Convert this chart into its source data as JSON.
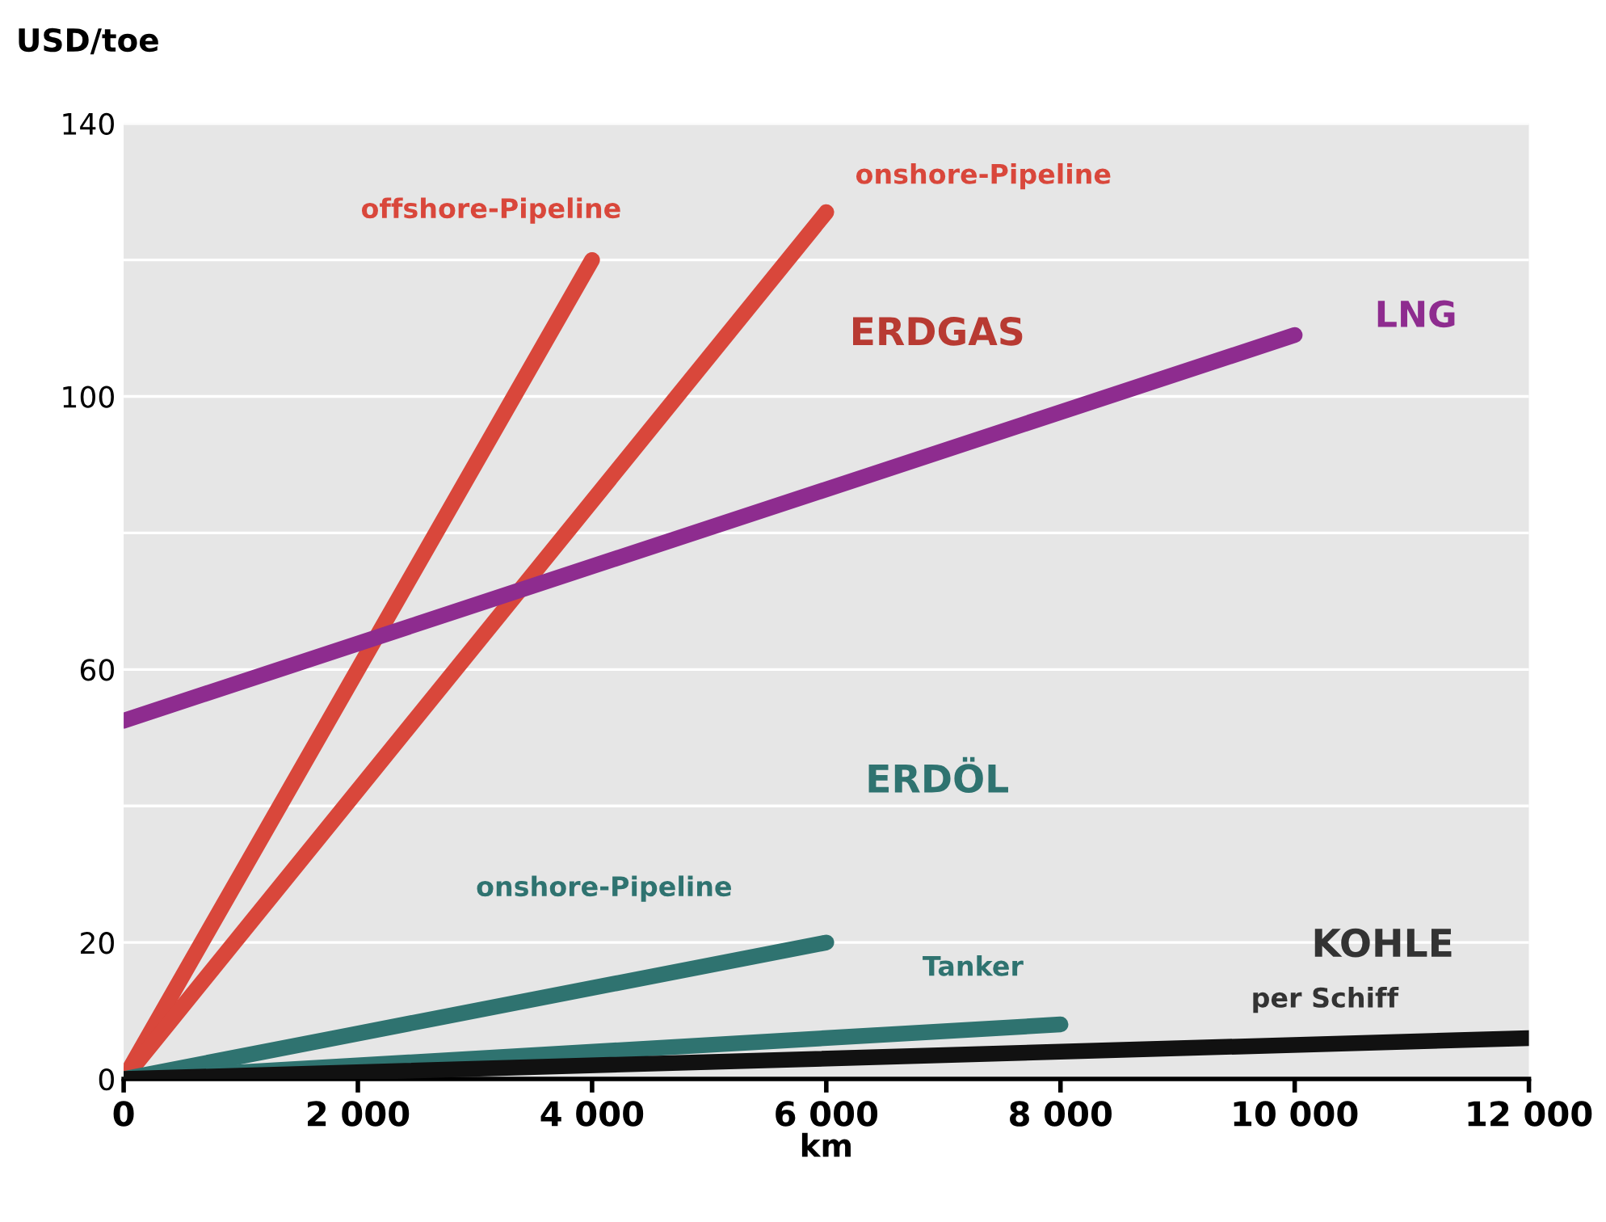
{
  "chart_data": {
    "type": "line",
    "ylabel": "USD/toe",
    "xlabel": "km",
    "xlim": [
      0,
      12000
    ],
    "xticks": [
      {
        "value": 0,
        "label": "0"
      },
      {
        "value": 2000,
        "label": "2 000"
      },
      {
        "value": 4000,
        "label": "4 000"
      },
      {
        "value": 6000,
        "label": "6 000"
      },
      {
        "value": 8000,
        "label": "8 000"
      },
      {
        "value": 10000,
        "label": "10 000"
      },
      {
        "value": 12000,
        "label": "12 000"
      }
    ],
    "ylim": [
      0,
      140
    ],
    "yticks": [
      0,
      20,
      {
        "value": 40,
        "label": null
      },
      60,
      {
        "value": 80,
        "label": null
      },
      100,
      {
        "value": 120,
        "label": null
      },
      140
    ],
    "grid": "y",
    "legend": false,
    "marker": "none",
    "line_style": "solid",
    "series": [
      {
        "name": "offshore-Pipeline",
        "color": "#d9473b",
        "x": [
          0,
          4000
        ],
        "values": [
          0,
          120
        ]
      },
      {
        "name": "onshore-Pipeline",
        "color": "#d9473b",
        "x": [
          0,
          6000
        ],
        "values": [
          0,
          127
        ]
      },
      {
        "name": "LNG",
        "color": "#8e2c8f",
        "x": [
          0,
          10000
        ],
        "values": [
          52.5,
          109
        ]
      },
      {
        "name": "onshore-Pipeline",
        "color": "#2f7370",
        "x": [
          0,
          6000
        ],
        "values": [
          0,
          20
        ]
      },
      {
        "name": "Tanker",
        "color": "#2f7370",
        "x": [
          0,
          8000
        ],
        "values": [
          0,
          8
        ]
      },
      {
        "name": "per Schiff",
        "color": "#111111",
        "x": [
          0,
          12000
        ],
        "values": [
          0,
          6
        ]
      }
    ],
    "annotations": [
      "ERDGAS",
      "ERDÖL",
      "KOHLE"
    ]
  }
}
